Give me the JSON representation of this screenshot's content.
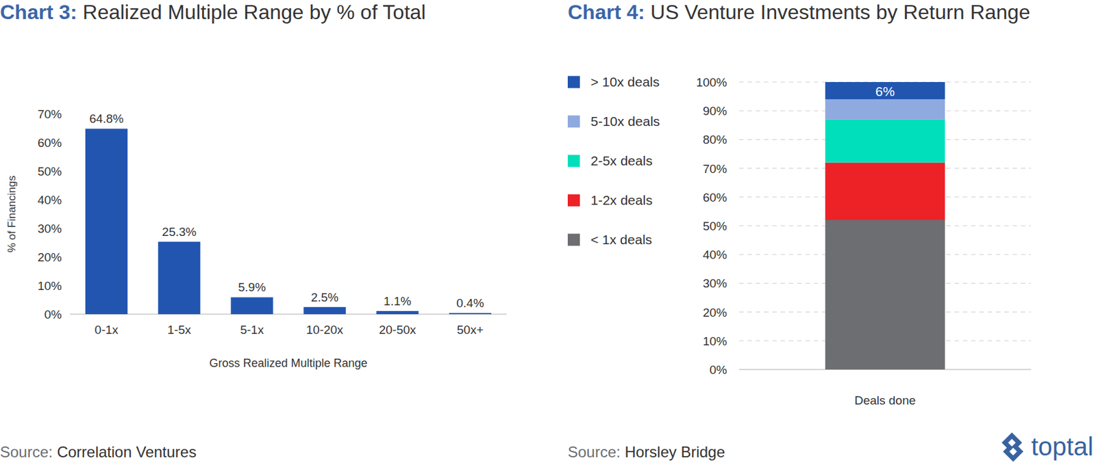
{
  "chart_data": [
    {
      "type": "bar",
      "title": "Chart 3: Realized Multiple Range by % of Total",
      "source": "Source: Correlation Ventures",
      "categories": [
        "0-1x",
        "1-5x",
        "5-1x",
        "10-20x",
        "20-50x",
        "50x+"
      ],
      "values": [
        64.8,
        25.3,
        5.9,
        2.5,
        1.1,
        0.4
      ],
      "value_labels": [
        "64.8%",
        "25.3%",
        "5.9%",
        "2.5%",
        "1.1%",
        "0.4%"
      ],
      "data_labels": true,
      "color": "#2155b0",
      "ylim": [
        0,
        70
      ],
      "yticks": [
        {
          "value": 0,
          "label": "0%"
        },
        {
          "value": 10,
          "label": "10%"
        },
        {
          "value": 20,
          "label": "20%"
        },
        {
          "value": 30,
          "label": "30%"
        },
        {
          "value": 40,
          "label": "40%"
        },
        {
          "value": 50,
          "label": "50%"
        },
        {
          "value": 60,
          "label": "60%"
        },
        {
          "value": 70,
          "label": "70%"
        }
      ],
      "x_label": "Gross Realized Multiple Range",
      "y_label": "% of Financings",
      "grid": false
    },
    {
      "type": "bar",
      "stacked": true,
      "title": "Chart 4: US Venture Investments by Return Range",
      "source": "Source: Horsley Bridge",
      "categories": [
        "Deals done"
      ],
      "series": [
        {
          "name": "< 1x deals",
          "color": "#6d6e71",
          "values": [
            52
          ]
        },
        {
          "name": "1-2x deals",
          "color": "#ec2227",
          "values": [
            20
          ]
        },
        {
          "name": "2-5x deals",
          "color": "#00dfbb",
          "values": [
            15
          ]
        },
        {
          "name": "5-10x deals",
          "color": "#8eaadf",
          "values": [
            7
          ]
        },
        {
          "name": "> 10x deals",
          "color": "#2155b0",
          "values": [
            6
          ],
          "data_labels": true,
          "value_labels": [
            "6%"
          ]
        }
      ],
      "ylim": [
        0,
        100
      ],
      "yticks": [
        {
          "value": 0,
          "label": "0%"
        },
        {
          "value": 10,
          "label": "10%"
        },
        {
          "value": 20,
          "label": "20%"
        },
        {
          "value": 30,
          "label": "30%"
        },
        {
          "value": 40,
          "label": "40%"
        },
        {
          "value": 50,
          "label": "50%"
        },
        {
          "value": 60,
          "label": "60%"
        },
        {
          "value": 70,
          "label": "70%"
        },
        {
          "value": 80,
          "label": "80%"
        },
        {
          "value": 90,
          "label": "90%"
        },
        {
          "value": 100,
          "label": "100%"
        }
      ],
      "grid": true,
      "legend": "left"
    }
  ],
  "logo": "toptal"
}
